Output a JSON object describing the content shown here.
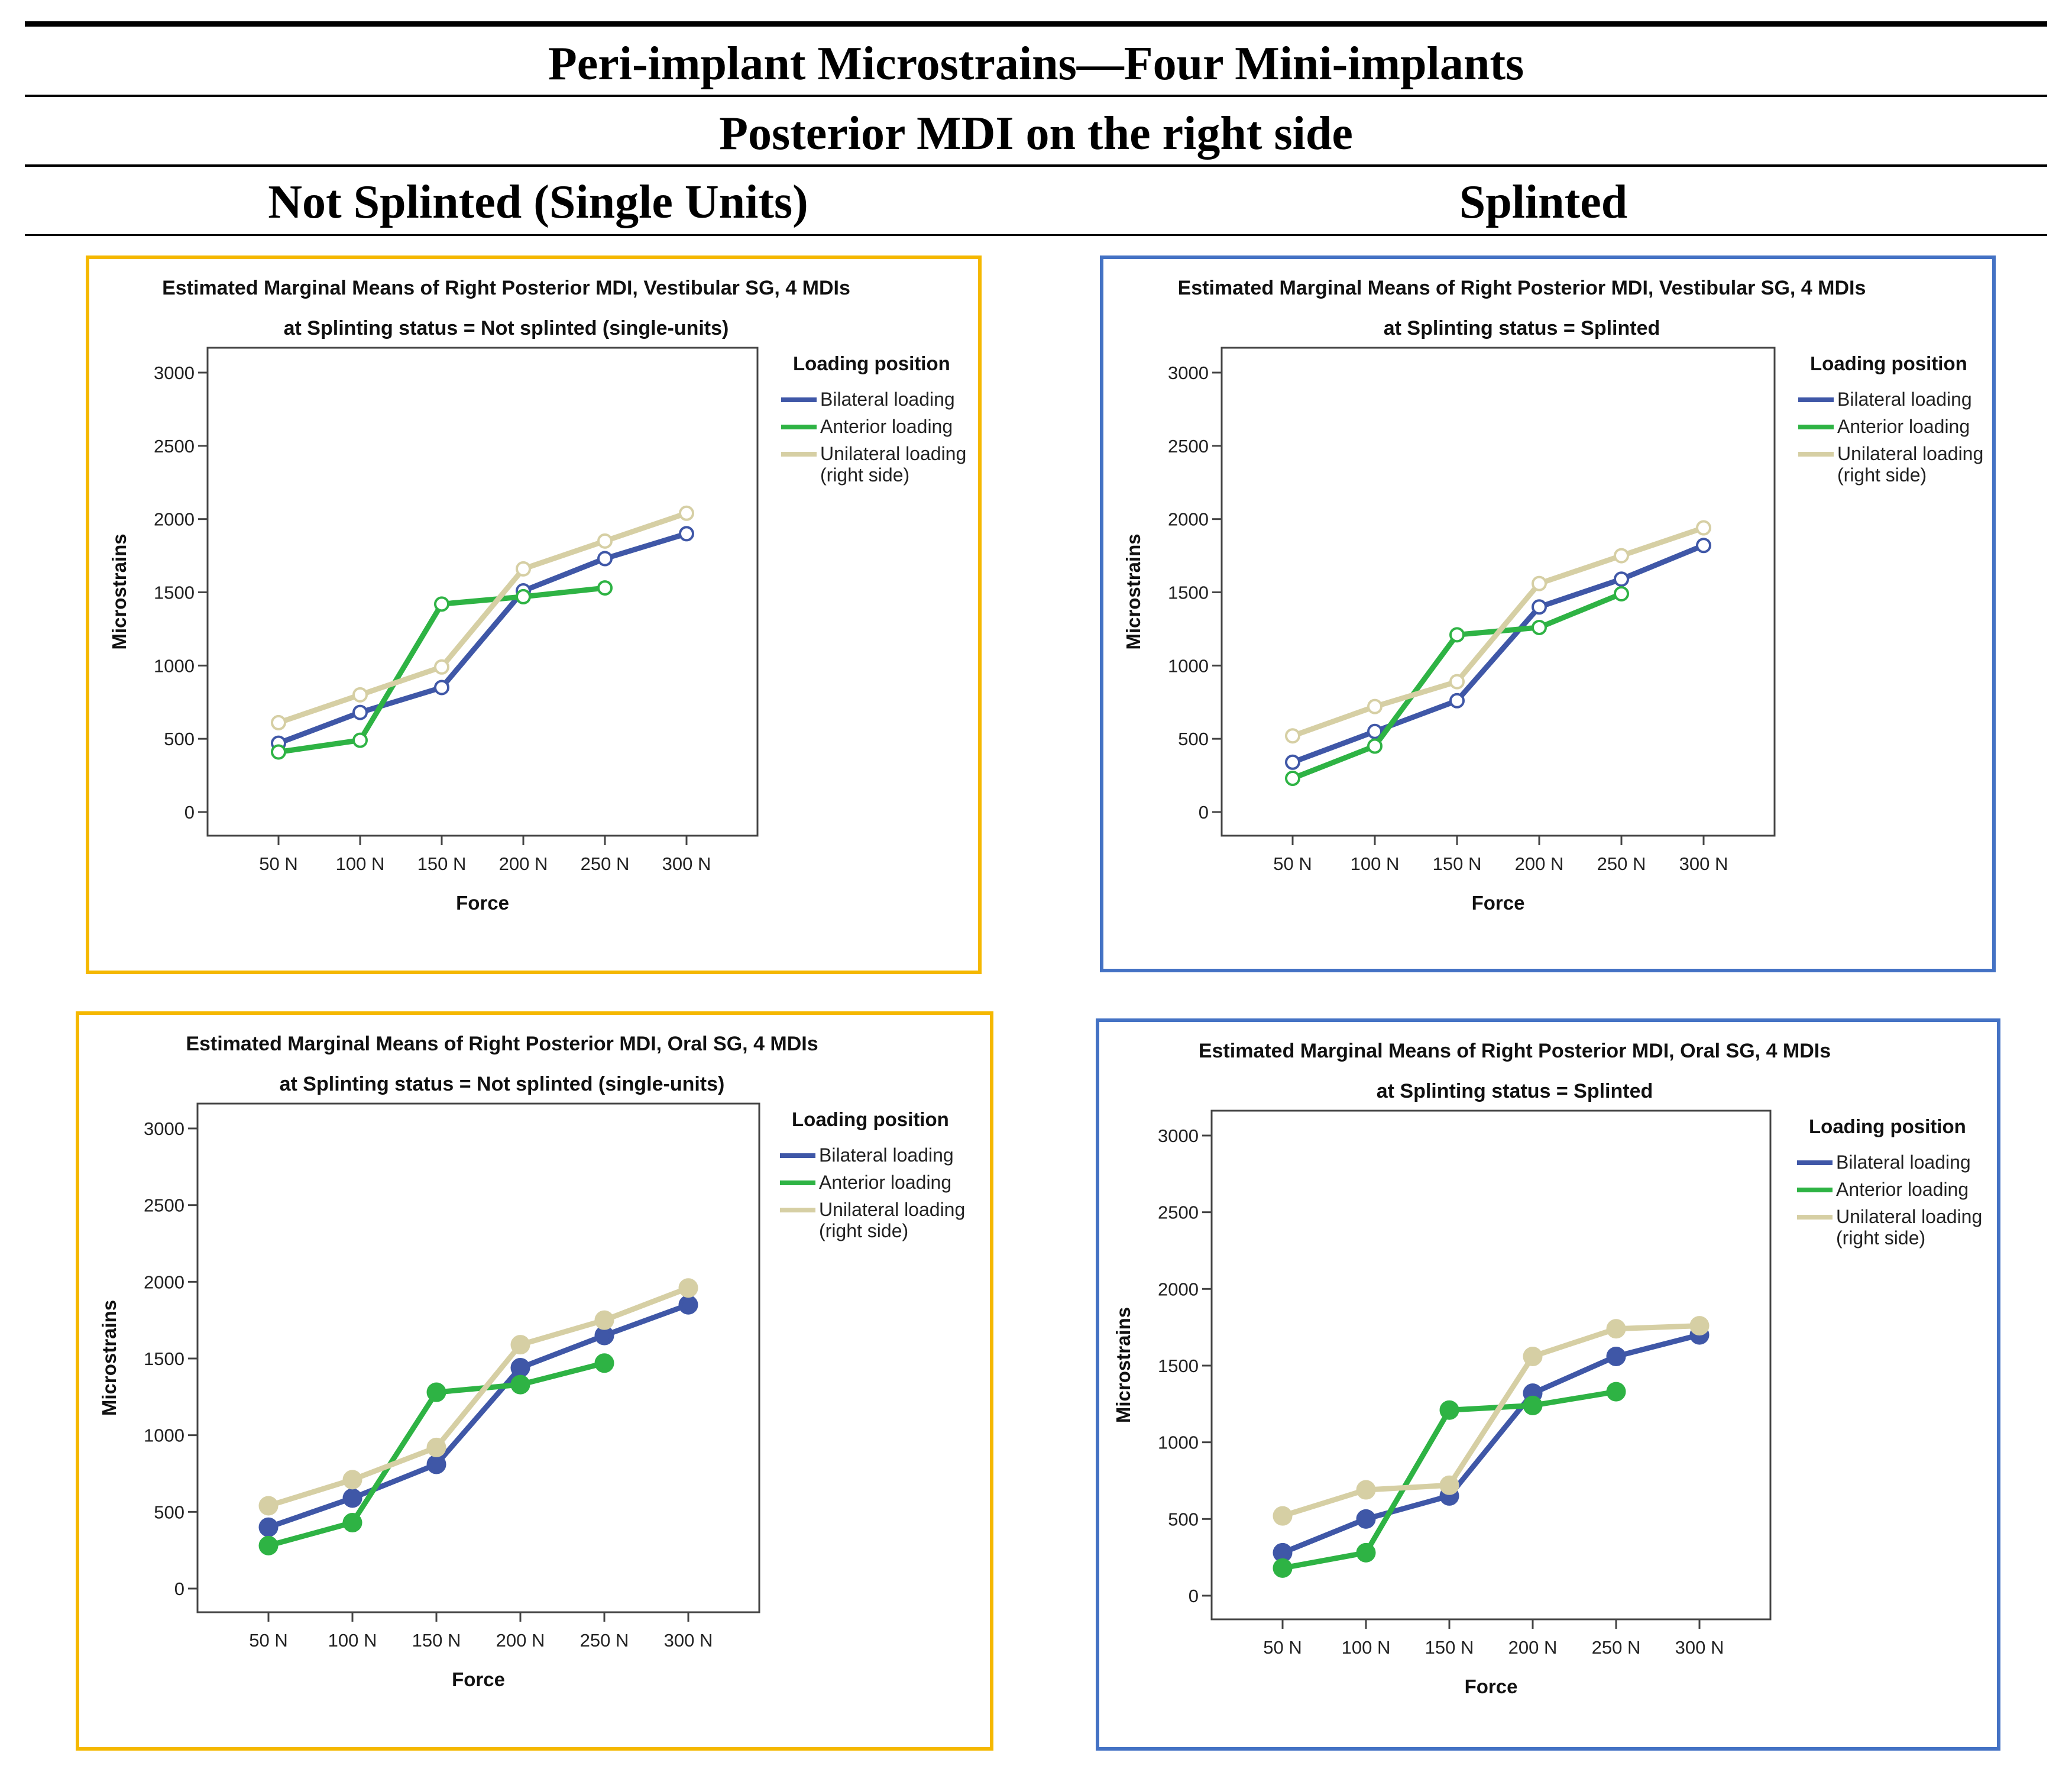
{
  "header": {
    "title": "Peri-implant Microstrains—Four Mini-implants",
    "subtitle": "Posterior MDI on the right side",
    "left_column": "Not Splinted (Single Units)",
    "right_column": "Splinted"
  },
  "colors": {
    "bilateral": "#3f57a7",
    "anterior": "#2eb344",
    "unilateral": "#d6cfa4",
    "not_splinted_border": "#f5b800",
    "splinted_border": "#4472c4"
  },
  "chart_data": [
    {
      "type": "line",
      "title": "Estimated Marginal Means of Right Posterior MDI, Vestibular SG, 4 MDIs",
      "subtitle": "at Splinting status = Not splinted (single-units)",
      "xlabel": "Force",
      "ylabel": "Microstrains",
      "categories": [
        "50 N",
        "100 N",
        "150 N",
        "200 N",
        "250 N",
        "300 N"
      ],
      "yticks": [
        "0",
        "500",
        "1000",
        "1500",
        "2000",
        "2500",
        "3000"
      ],
      "ylim": [
        0,
        3000
      ],
      "legend_title": "Loading position",
      "series": [
        {
          "name": "Bilateral loading",
          "color_key": "bilateral",
          "values": [
            470,
            680,
            850,
            1510,
            1730,
            1900
          ]
        },
        {
          "name": "Anterior loading",
          "color_key": "anterior",
          "values": [
            410,
            490,
            1420,
            1470,
            1530,
            null
          ]
        },
        {
          "name": "Unilateral loading",
          "name2": "(right side)",
          "color_key": "unilateral",
          "values": [
            610,
            800,
            990,
            1660,
            1850,
            2040
          ]
        }
      ]
    },
    {
      "type": "line",
      "title": "Estimated Marginal Means of Right Posterior MDI, Vestibular SG, 4 MDIs",
      "subtitle": "at Splinting status = Splinted",
      "xlabel": "Force",
      "ylabel": "Microstrains",
      "categories": [
        "50 N",
        "100 N",
        "150 N",
        "200 N",
        "250 N",
        "300 N"
      ],
      "yticks": [
        "0",
        "500",
        "1000",
        "1500",
        "2000",
        "2500",
        "3000"
      ],
      "ylim": [
        0,
        3000
      ],
      "legend_title": "Loading position",
      "series": [
        {
          "name": "Bilateral loading",
          "color_key": "bilateral",
          "values": [
            340,
            550,
            760,
            1400,
            1590,
            1820
          ]
        },
        {
          "name": "Anterior loading",
          "color_key": "anterior",
          "values": [
            230,
            450,
            1210,
            1260,
            1490,
            null
          ]
        },
        {
          "name": "Unilateral loading",
          "name2": "(right side)",
          "color_key": "unilateral",
          "values": [
            520,
            720,
            890,
            1560,
            1750,
            1940
          ]
        }
      ]
    },
    {
      "type": "line",
      "title": "Estimated Marginal Means of Right Posterior MDI, Oral SG, 4 MDIs",
      "subtitle": "at Splinting status = Not splinted (single-units)",
      "xlabel": "Force",
      "ylabel": "Microstrains",
      "categories": [
        "50 N",
        "100 N",
        "150 N",
        "200 N",
        "250 N",
        "300 N"
      ],
      "yticks": [
        "0",
        "500",
        "1000",
        "1500",
        "2000",
        "2500",
        "3000"
      ],
      "ylim": [
        0,
        3000
      ],
      "legend_title": "Loading position",
      "series": [
        {
          "name": "Bilateral loading",
          "color_key": "bilateral",
          "values": [
            400,
            590,
            810,
            1440,
            1650,
            1850
          ]
        },
        {
          "name": "Anterior loading",
          "color_key": "anterior",
          "values": [
            280,
            430,
            1280,
            1330,
            1470,
            null
          ]
        },
        {
          "name": "Unilateral loading",
          "name2": "(right side)",
          "color_key": "unilateral",
          "values": [
            540,
            710,
            920,
            1590,
            1750,
            1960
          ]
        }
      ]
    },
    {
      "type": "line",
      "title": "Estimated Marginal Means of Right Posterior MDI, Oral SG, 4 MDIs",
      "subtitle": "at Splinting status = Splinted",
      "xlabel": "Force",
      "ylabel": "Microstrains",
      "categories": [
        "50 N",
        "100 N",
        "150 N",
        "200 N",
        "250 N",
        "300 N"
      ],
      "yticks": [
        "0",
        "500",
        "1000",
        "1500",
        "2000",
        "2500",
        "3000"
      ],
      "ylim": [
        0,
        3000
      ],
      "legend_title": "Loading position",
      "series": [
        {
          "name": "Bilateral loading",
          "color_key": "bilateral",
          "values": [
            280,
            500,
            650,
            1320,
            1560,
            1700
          ]
        },
        {
          "name": "Anterior loading",
          "color_key": "anterior",
          "values": [
            180,
            280,
            1210,
            1240,
            1330,
            null
          ]
        },
        {
          "name": "Unilateral loading",
          "name2": "(right side)",
          "color_key": "unilateral",
          "values": [
            520,
            690,
            720,
            1560,
            1740,
            1760
          ]
        }
      ]
    }
  ]
}
